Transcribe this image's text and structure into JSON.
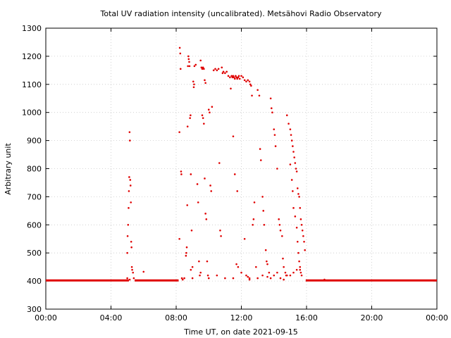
{
  "chart_data": {
    "type": "scatter",
    "title": "Total UV radiation intensity (uncalibrated). Metsähovi Radio Observatory",
    "xlabel": "Time UT, on date 2021-09-15",
    "ylabel": "Arbitrary unit",
    "xlim": [
      0,
      24
    ],
    "ylim": [
      300,
      1300
    ],
    "x_ticks": [
      {
        "value": 0,
        "label": "00:00"
      },
      {
        "value": 4,
        "label": "04:00"
      },
      {
        "value": 8,
        "label": "08:00"
      },
      {
        "value": 12,
        "label": "12:00"
      },
      {
        "value": 16,
        "label": "16:00"
      },
      {
        "value": 20,
        "label": "20:00"
      },
      {
        "value": 24,
        "label": "00:00"
      }
    ],
    "y_ticks": [
      300,
      400,
      500,
      600,
      700,
      800,
      900,
      1000,
      1100,
      1200,
      1300
    ],
    "grid": true,
    "legend": "none",
    "baseline": {
      "value": 402,
      "ranges": [
        [
          0,
          5.1
        ],
        [
          5.45,
          8.15
        ],
        [
          15.95,
          24
        ]
      ]
    },
    "series": [
      {
        "name": "",
        "color": "#e00000",
        "points": [
          [
            5.0,
            500
          ],
          [
            5.02,
            560
          ],
          [
            5.05,
            600
          ],
          [
            5.08,
            660
          ],
          [
            5.1,
            720
          ],
          [
            5.12,
            770
          ],
          [
            5.14,
            930
          ],
          [
            5.16,
            900
          ],
          [
            5.18,
            760
          ],
          [
            5.2,
            740
          ],
          [
            5.22,
            680
          ],
          [
            5.24,
            540
          ],
          [
            5.26,
            520
          ],
          [
            5.28,
            450
          ],
          [
            5.3,
            440
          ],
          [
            5.35,
            430
          ],
          [
            5.4,
            410
          ],
          [
            5.0,
            410
          ],
          [
            5.15,
            405
          ],
          [
            6.0,
            433
          ],
          [
            8.2,
            930
          ],
          [
            8.22,
            1230
          ],
          [
            8.25,
            1210
          ],
          [
            8.27,
            1155
          ],
          [
            8.3,
            790
          ],
          [
            8.32,
            780
          ],
          [
            8.2,
            550
          ],
          [
            8.35,
            410
          ],
          [
            8.4,
            405
          ],
          [
            8.5,
            410
          ],
          [
            8.6,
            490
          ],
          [
            8.62,
            500
          ],
          [
            8.65,
            520
          ],
          [
            8.68,
            670
          ],
          [
            8.7,
            950
          ],
          [
            8.72,
            1165
          ],
          [
            8.75,
            1200
          ],
          [
            8.77,
            1190
          ],
          [
            8.8,
            1180
          ],
          [
            8.82,
            1165
          ],
          [
            8.85,
            980
          ],
          [
            8.88,
            990
          ],
          [
            8.9,
            780
          ],
          [
            8.95,
            580
          ],
          [
            8.9,
            440
          ],
          [
            9.0,
            450
          ],
          [
            9.05,
            1110
          ],
          [
            9.08,
            1090
          ],
          [
            9.1,
            1100
          ],
          [
            9.12,
            1165
          ],
          [
            9.2,
            1170
          ],
          [
            9.3,
            745
          ],
          [
            9.35,
            680
          ],
          [
            9.4,
            470
          ],
          [
            9.45,
            420
          ],
          [
            9.5,
            1185
          ],
          [
            9.55,
            1160
          ],
          [
            9.6,
            1155
          ],
          [
            9.65,
            1160
          ],
          [
            9.7,
            1155
          ],
          [
            9.75,
            1115
          ],
          [
            9.8,
            1105
          ],
          [
            9.6,
            990
          ],
          [
            9.65,
            980
          ],
          [
            9.7,
            960
          ],
          [
            9.75,
            765
          ],
          [
            9.8,
            640
          ],
          [
            9.85,
            620
          ],
          [
            9.9,
            470
          ],
          [
            9.95,
            420
          ],
          [
            10.0,
            1010
          ],
          [
            10.05,
            1000
          ],
          [
            10.1,
            740
          ],
          [
            10.15,
            720
          ],
          [
            10.2,
            1020
          ],
          [
            10.3,
            1150
          ],
          [
            10.4,
            1155
          ],
          [
            10.5,
            1150
          ],
          [
            10.6,
            1155
          ],
          [
            10.65,
            820
          ],
          [
            10.7,
            580
          ],
          [
            10.75,
            560
          ],
          [
            10.8,
            1160
          ],
          [
            10.85,
            1140
          ],
          [
            10.9,
            1145
          ],
          [
            11.0,
            1140
          ],
          [
            11.1,
            1145
          ],
          [
            11.2,
            1130
          ],
          [
            11.3,
            1125
          ],
          [
            11.35,
            1085
          ],
          [
            11.4,
            1130
          ],
          [
            11.45,
            1125
          ],
          [
            11.5,
            1130
          ],
          [
            11.55,
            1125
          ],
          [
            11.6,
            1120
          ],
          [
            11.65,
            1130
          ],
          [
            11.7,
            1125
          ],
          [
            11.75,
            1120
          ],
          [
            11.8,
            1125
          ],
          [
            11.85,
            1130
          ],
          [
            11.9,
            1120
          ],
          [
            11.5,
            915
          ],
          [
            11.6,
            780
          ],
          [
            11.75,
            720
          ],
          [
            11.7,
            460
          ],
          [
            11.8,
            450
          ],
          [
            12.0,
            1130
          ],
          [
            12.1,
            1125
          ],
          [
            12.2,
            1115
          ],
          [
            12.3,
            1110
          ],
          [
            12.4,
            1115
          ],
          [
            12.5,
            1110
          ],
          [
            12.55,
            1100
          ],
          [
            12.6,
            1095
          ],
          [
            12.65,
            1060
          ],
          [
            12.2,
            550
          ],
          [
            12.3,
            420
          ],
          [
            12.4,
            415
          ],
          [
            12.5,
            410
          ],
          [
            12.7,
            600
          ],
          [
            12.75,
            620
          ],
          [
            12.8,
            680
          ],
          [
            12.9,
            450
          ],
          [
            13.0,
            1080
          ],
          [
            13.1,
            1060
          ],
          [
            13.15,
            870
          ],
          [
            13.2,
            830
          ],
          [
            13.3,
            700
          ],
          [
            13.35,
            650
          ],
          [
            13.4,
            600
          ],
          [
            13.5,
            510
          ],
          [
            13.55,
            470
          ],
          [
            13.6,
            460
          ],
          [
            13.7,
            430
          ],
          [
            13.8,
            1050
          ],
          [
            13.85,
            1015
          ],
          [
            13.9,
            1000
          ],
          [
            14.0,
            940
          ],
          [
            14.05,
            920
          ],
          [
            14.1,
            880
          ],
          [
            14.2,
            800
          ],
          [
            14.3,
            620
          ],
          [
            14.35,
            600
          ],
          [
            14.4,
            580
          ],
          [
            14.5,
            560
          ],
          [
            14.55,
            480
          ],
          [
            14.6,
            450
          ],
          [
            14.7,
            430
          ],
          [
            14.75,
            420
          ],
          [
            14.8,
            990
          ],
          [
            14.9,
            960
          ],
          [
            15.0,
            940
          ],
          [
            15.05,
            920
          ],
          [
            15.1,
            900
          ],
          [
            15.15,
            880
          ],
          [
            15.2,
            860
          ],
          [
            15.25,
            840
          ],
          [
            15.3,
            820
          ],
          [
            15.35,
            800
          ],
          [
            15.4,
            790
          ],
          [
            15.45,
            730
          ],
          [
            15.5,
            710
          ],
          [
            15.55,
            700
          ],
          [
            15.6,
            660
          ],
          [
            15.65,
            620
          ],
          [
            15.7,
            600
          ],
          [
            15.75,
            580
          ],
          [
            15.8,
            560
          ],
          [
            15.85,
            540
          ],
          [
            15.9,
            510
          ],
          [
            15.0,
            815
          ],
          [
            15.1,
            760
          ],
          [
            15.15,
            720
          ],
          [
            15.2,
            660
          ],
          [
            15.3,
            630
          ],
          [
            15.4,
            590
          ],
          [
            15.45,
            540
          ],
          [
            15.5,
            500
          ],
          [
            15.55,
            470
          ],
          [
            15.6,
            450
          ],
          [
            15.65,
            430
          ],
          [
            15.7,
            420
          ],
          [
            13.6,
            415
          ],
          [
            13.8,
            410
          ],
          [
            14.0,
            420
          ],
          [
            14.2,
            430
          ],
          [
            14.4,
            410
          ],
          [
            14.6,
            405
          ],
          [
            14.8,
            420
          ],
          [
            15.0,
            420
          ],
          [
            15.2,
            430
          ],
          [
            15.4,
            440
          ],
          [
            15.6,
            440
          ],
          [
            9.0,
            410
          ],
          [
            9.5,
            430
          ],
          [
            10.0,
            410
          ],
          [
            10.5,
            420
          ],
          [
            11.0,
            410
          ],
          [
            11.5,
            410
          ],
          [
            12.0,
            430
          ],
          [
            12.5,
            405
          ],
          [
            13.0,
            410
          ],
          [
            13.3,
            420
          ],
          [
            17.1,
            405
          ],
          [
            17.3,
            402
          ]
        ]
      }
    ]
  }
}
